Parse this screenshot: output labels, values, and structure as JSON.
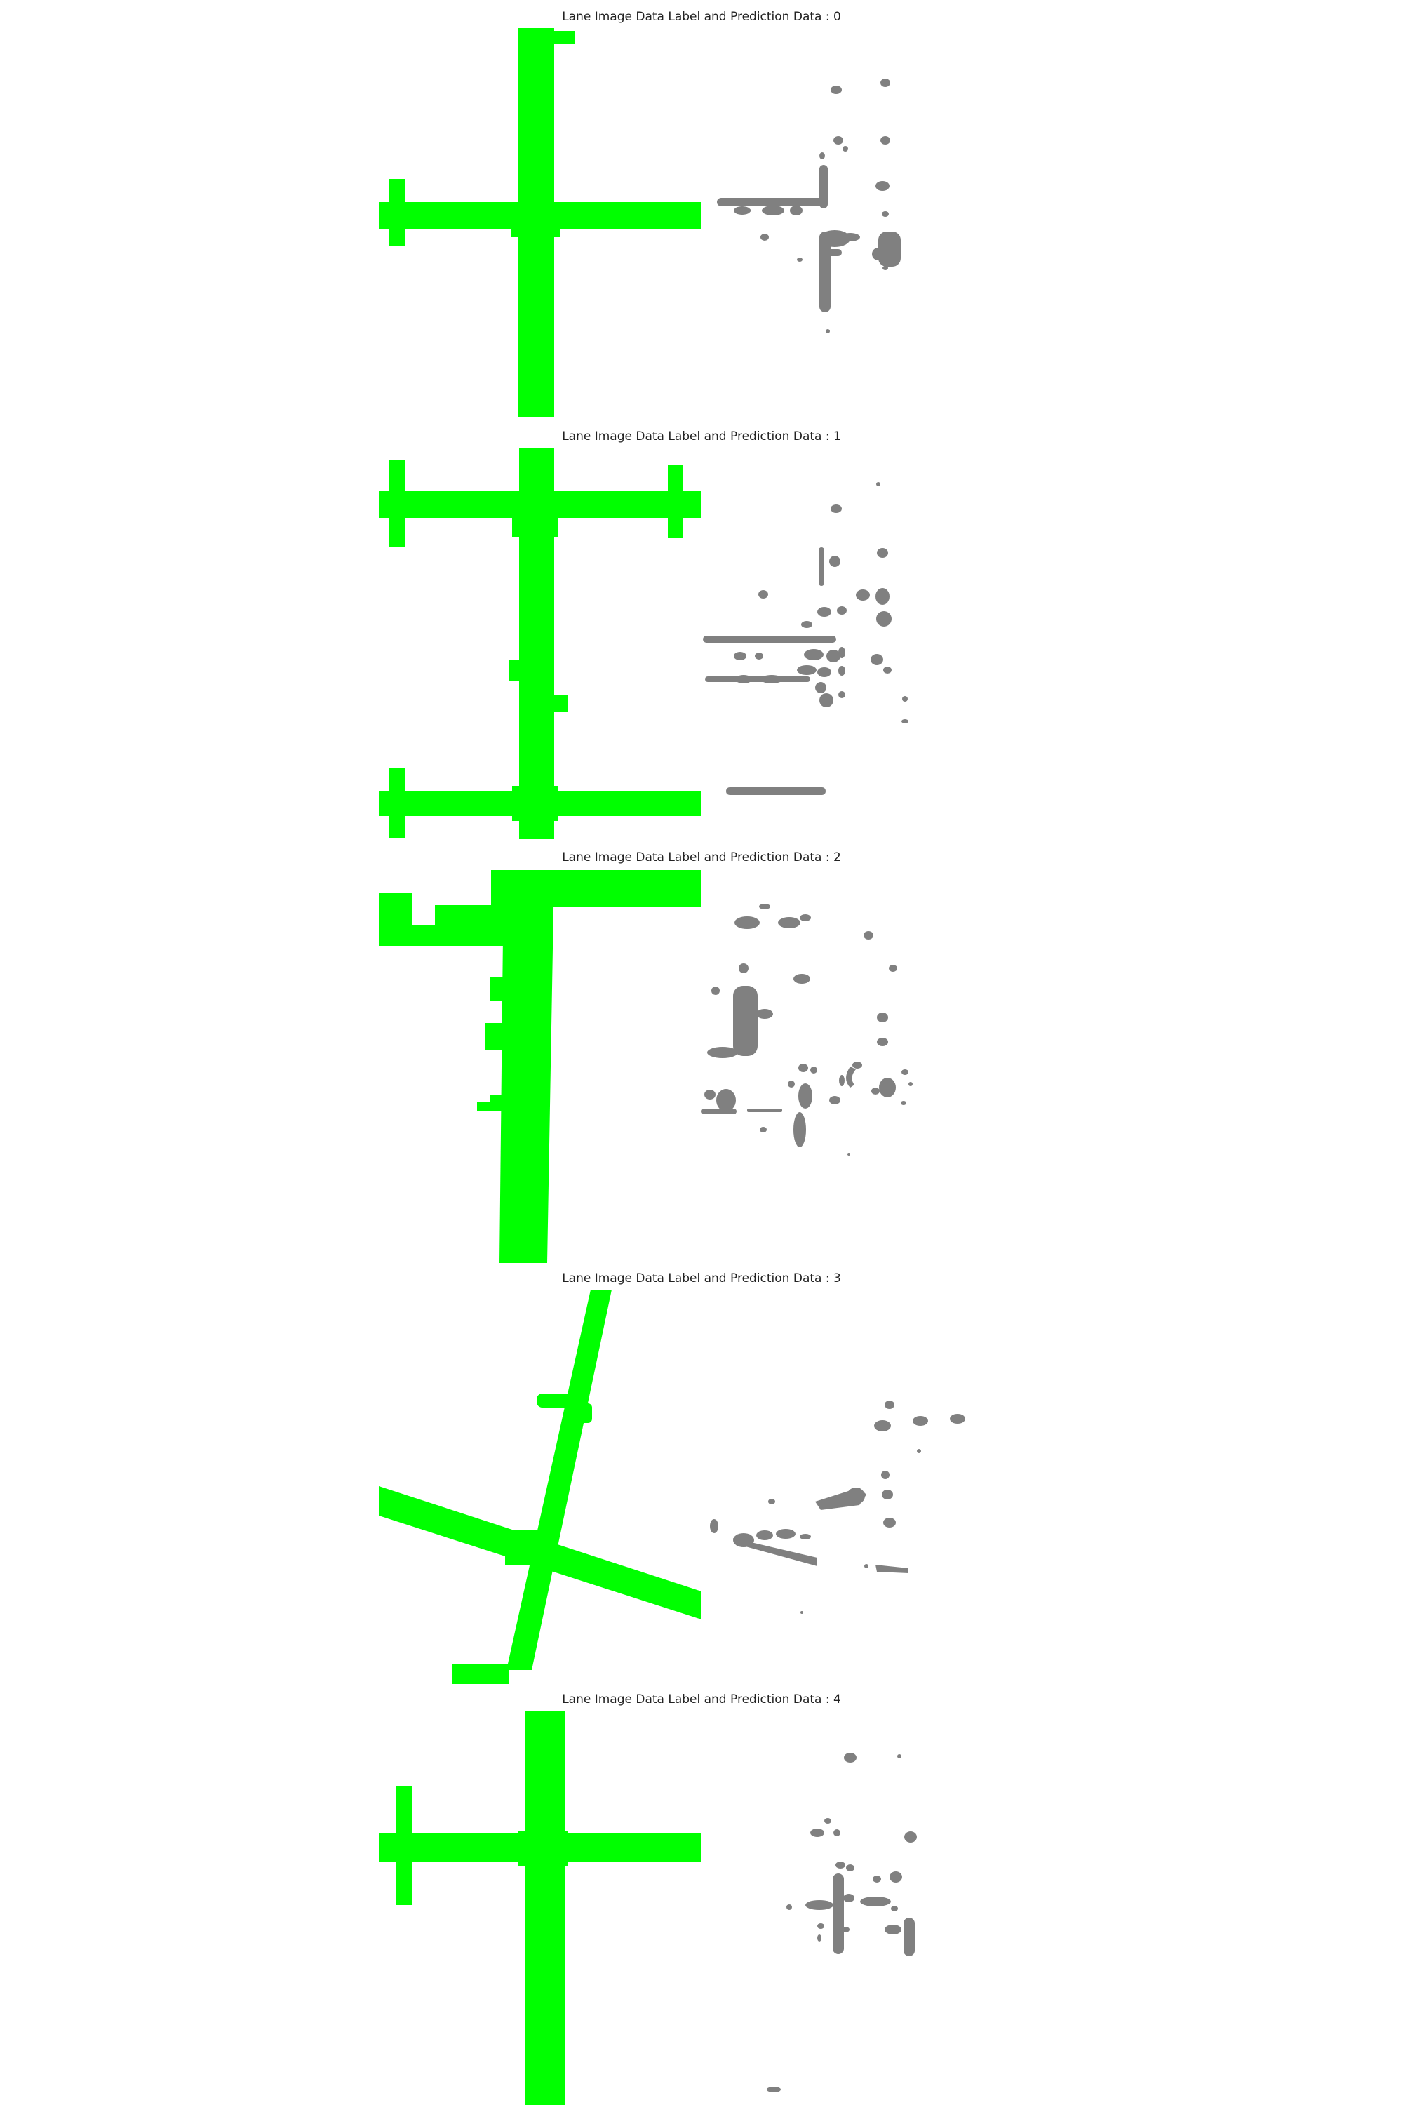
{
  "figure": {
    "panels": [
      {
        "title": "Lane Image Data Label and Prediction Data : 0"
      },
      {
        "title": "Lane Image Data Label and Prediction Data : 1"
      },
      {
        "title": "Lane Image Data Label and Prediction Data : 2"
      },
      {
        "title": "Lane Image Data Label and Prediction Data : 3"
      },
      {
        "title": "Lane Image Data Label and Prediction Data : 4"
      }
    ]
  },
  "colors": {
    "label_mask": "#00ff00",
    "prediction_mask": "#808080",
    "background": "#ffffff"
  }
}
